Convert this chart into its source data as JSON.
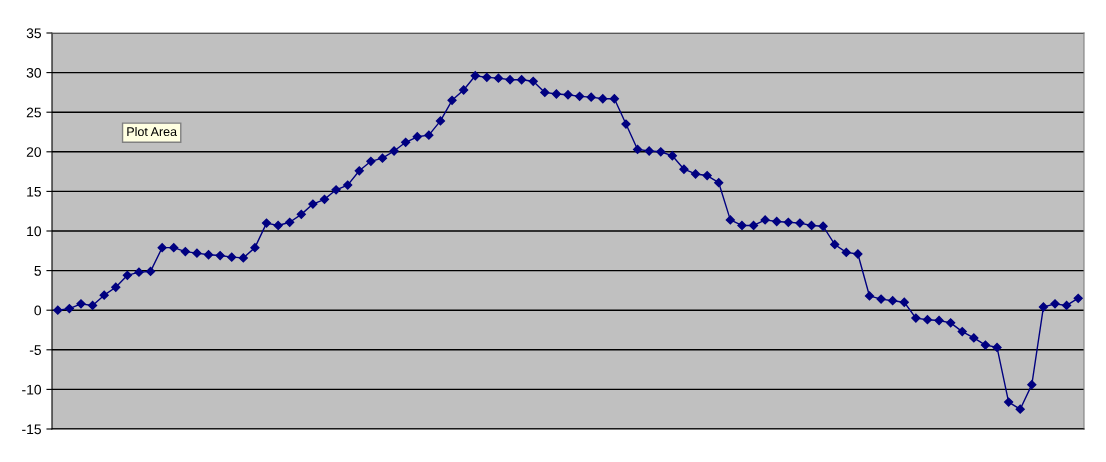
{
  "chart_data": {
    "type": "line",
    "categories": [
      null,
      null,
      null,
      null,
      null,
      null,
      null,
      null,
      null,
      null,
      null,
      null,
      null,
      null,
      null,
      null,
      null,
      null,
      null,
      null,
      null,
      null,
      null,
      null,
      null,
      null,
      null,
      null,
      null,
      null,
      null,
      null,
      null,
      null,
      null,
      null,
      null,
      null,
      null,
      null,
      null,
      null,
      null,
      null,
      null,
      null,
      null,
      null,
      null,
      null,
      null,
      null,
      null,
      null,
      null,
      null,
      null,
      null,
      null,
      null,
      null,
      null,
      null,
      null,
      null,
      null,
      null,
      null,
      null,
      null,
      null,
      null,
      null,
      null,
      null,
      null,
      null,
      null,
      null,
      null,
      null,
      null,
      null,
      null,
      null,
      null,
      null,
      null,
      null
    ],
    "series": [
      {
        "color": "#000080",
        "values": [
          0,
          0.2,
          0.8,
          0.6,
          1.9,
          2.9,
          4.4,
          4.8,
          4.9,
          7.9,
          7.9,
          7.4,
          7.2,
          7.0,
          6.9,
          6.7,
          6.6,
          7.9,
          11.0,
          10.7,
          11.1,
          12.1,
          13.4,
          14.0,
          15.2,
          15.8,
          17.6,
          18.8,
          19.2,
          20.1,
          21.2,
          21.9,
          22.1,
          23.9,
          26.5,
          27.8,
          29.6,
          29.4,
          29.3,
          29.1,
          29.1,
          28.9,
          27.5,
          27.3,
          27.2,
          27.0,
          26.9,
          26.7,
          26.7,
          23.5,
          20.3,
          20.1,
          20.0,
          19.5,
          17.8,
          17.2,
          17.0,
          16.1,
          11.4,
          10.7,
          10.7,
          11.4,
          11.2,
          11.1,
          11.0,
          10.7,
          10.6,
          8.3,
          7.3,
          7.1,
          1.8,
          1.4,
          1.2,
          1.0,
          -1.0,
          -1.2,
          -1.3,
          -1.6,
          -2.7,
          -3.5,
          -4.4,
          -4.7,
          -11.6,
          -12.5,
          -9.4,
          0.4,
          0.8,
          0.6,
          1.5
        ]
      }
    ],
    "ylim": [
      -15,
      35
    ],
    "yticks": [
      -15,
      -10,
      -5,
      0,
      5,
      10,
      15,
      20,
      25,
      30,
      35
    ],
    "grid": "y",
    "marker": "diamond",
    "line_style": "solid",
    "tick_labels": "y",
    "annotations": [
      "Plot Area"
    ]
  }
}
